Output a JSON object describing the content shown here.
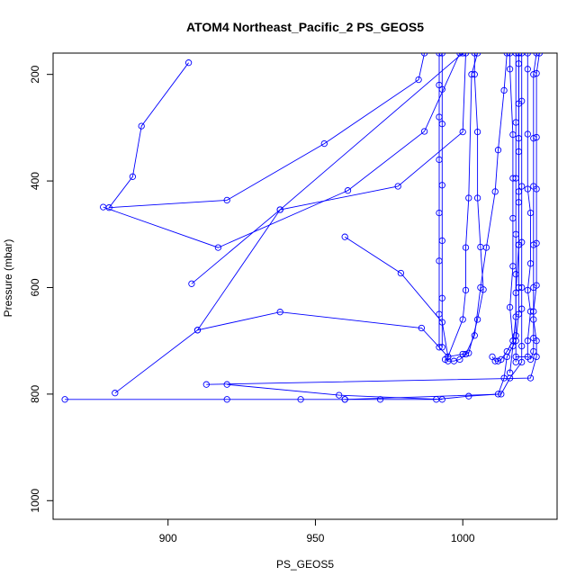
{
  "chart_data": {
    "type": "line",
    "title": "ATOM4 Northeast_Pacific_2 PS_GEOS5",
    "xlabel": "PS_GEOS5",
    "ylabel": "Pressure (mbar)",
    "xlim": [
      861,
      1032
    ],
    "ylim": [
      160,
      1035
    ],
    "y_reversed": true,
    "x_ticks": [
      900,
      950,
      1000
    ],
    "y_ticks": [
      200,
      400,
      600,
      800,
      1000
    ],
    "grid": false,
    "color": "#0000ff",
    "series": [
      {
        "values": [
          [
            907,
            178
          ],
          [
            891,
            297
          ],
          [
            888,
            392
          ],
          [
            880,
            450
          ],
          [
            920,
            436
          ],
          [
            953,
            330
          ],
          [
            985,
            210
          ],
          [
            987,
            160
          ]
        ]
      },
      {
        "values": [
          [
            878,
            449
          ],
          [
            917,
            525
          ],
          [
            961,
            418
          ],
          [
            987,
            307
          ],
          [
            999,
            160
          ]
        ]
      },
      {
        "values": [
          [
            908,
            593
          ],
          [
            938,
            454
          ],
          [
            978,
            410
          ],
          [
            1000,
            308
          ],
          [
            1001,
            160
          ]
        ]
      },
      {
        "values": [
          [
            910,
            680
          ],
          [
            938,
            454
          ],
          [
            1000,
            160
          ]
        ]
      },
      {
        "values": [
          [
            882,
            798
          ],
          [
            910,
            680
          ],
          [
            938,
            646
          ],
          [
            986,
            676
          ],
          [
            995,
            730
          ],
          [
            1000,
            660
          ],
          [
            1001,
            605
          ],
          [
            1001,
            525
          ],
          [
            1002,
            432
          ],
          [
            1003,
            200
          ],
          [
            1005,
            160
          ]
        ]
      },
      {
        "values": [
          [
            960,
            505
          ],
          [
            979,
            573
          ],
          [
            993,
            665
          ],
          [
            995,
            730
          ],
          [
            1000,
            725
          ],
          [
            1002,
            723
          ],
          [
            1005,
            660
          ],
          [
            1007,
            604
          ],
          [
            1006,
            524
          ],
          [
            1005,
            432
          ],
          [
            1005,
            308
          ],
          [
            1004,
            200
          ],
          [
            1004,
            160
          ]
        ]
      },
      {
        "values": [
          [
            865,
            810
          ],
          [
            920,
            810
          ],
          [
            945,
            810
          ],
          [
            960,
            810
          ],
          [
            972,
            810
          ],
          [
            991,
            810
          ],
          [
            1002,
            804
          ],
          [
            1012,
            800
          ],
          [
            1014,
            770
          ],
          [
            1015,
            730
          ],
          [
            1018,
            700
          ],
          [
            1019,
            650
          ],
          [
            1019,
            600
          ],
          [
            1019,
            520
          ],
          [
            1019,
            420
          ],
          [
            1019,
            320
          ],
          [
            1019,
            180
          ],
          [
            1019,
            160
          ]
        ]
      },
      {
        "values": [
          [
            960,
            810
          ],
          [
            1013,
            800
          ],
          [
            1016,
            770
          ],
          [
            1020,
            740
          ],
          [
            1020,
            710
          ],
          [
            1020,
            640
          ],
          [
            1020,
            600
          ],
          [
            1020,
            515
          ],
          [
            1020,
            410
          ],
          [
            1020,
            250
          ],
          [
            1020,
            160
          ]
        ]
      },
      {
        "values": [
          [
            913,
            782
          ],
          [
            1023,
            770
          ],
          [
            1025,
            730
          ],
          [
            1025,
            700
          ],
          [
            1024,
            660
          ],
          [
            1024,
            600
          ],
          [
            1024,
            520
          ],
          [
            1024,
            410
          ],
          [
            1024,
            320
          ],
          [
            1024,
            200
          ],
          [
            1025,
            160
          ]
        ]
      },
      {
        "values": [
          [
            920,
            782
          ],
          [
            958,
            802
          ],
          [
            993,
            810
          ]
        ]
      },
      {
        "values": [
          [
            992,
            712
          ],
          [
            992,
            650
          ],
          [
            992,
            550
          ],
          [
            992,
            460
          ],
          [
            992,
            360
          ],
          [
            992,
            280
          ],
          [
            992,
            220
          ],
          [
            992,
            160
          ]
        ]
      },
      {
        "values": [
          [
            993,
            712
          ],
          [
            993,
            620
          ],
          [
            993,
            512
          ],
          [
            993,
            408
          ],
          [
            993,
            293
          ],
          [
            993,
            228
          ],
          [
            993,
            160
          ]
        ]
      },
      {
        "values": [
          [
            994,
            735
          ],
          [
            995,
            738
          ],
          [
            997,
            738
          ],
          [
            999,
            735
          ],
          [
            1001,
            725
          ],
          [
            1004,
            690
          ],
          [
            1006,
            600
          ],
          [
            1008,
            525
          ],
          [
            1011,
            420
          ],
          [
            1012,
            342
          ],
          [
            1014,
            230
          ],
          [
            1015,
            160
          ]
        ]
      },
      {
        "values": [
          [
            1010,
            730
          ],
          [
            1011,
            738
          ],
          [
            1012,
            738
          ],
          [
            1013,
            735
          ],
          [
            1015,
            720
          ],
          [
            1017,
            700
          ],
          [
            1016,
            637
          ],
          [
            1017,
            560
          ],
          [
            1017,
            470
          ],
          [
            1017,
            395
          ],
          [
            1017,
            313
          ],
          [
            1016,
            190
          ],
          [
            1016,
            160
          ]
        ]
      },
      {
        "values": [
          [
            1018,
            730
          ],
          [
            1022,
            730
          ],
          [
            1022,
            700
          ],
          [
            1023,
            645
          ],
          [
            1022,
            605
          ],
          [
            1023,
            555
          ],
          [
            1023,
            460
          ],
          [
            1022,
            415
          ],
          [
            1022,
            312
          ],
          [
            1022,
            190
          ],
          [
            1022,
            160
          ]
        ]
      },
      {
        "values": [
          [
            1023,
            735
          ],
          [
            1024,
            720
          ],
          [
            1024,
            695
          ],
          [
            1024,
            645
          ],
          [
            1025,
            596
          ],
          [
            1025,
            517
          ],
          [
            1025,
            415
          ],
          [
            1025,
            318
          ],
          [
            1025,
            198
          ],
          [
            1026,
            160
          ]
        ]
      },
      {
        "values": [
          [
            1018,
            740
          ],
          [
            1018,
            690
          ],
          [
            1018,
            610
          ],
          [
            1019,
            520
          ],
          [
            1019,
            440
          ],
          [
            1019,
            345
          ],
          [
            1019,
            255
          ],
          [
            1019,
            160
          ]
        ]
      },
      {
        "values": [
          [
            1016,
            760
          ],
          [
            1017,
            710
          ],
          [
            1018,
            655
          ],
          [
            1018,
            575
          ],
          [
            1018,
            500
          ],
          [
            1018,
            395
          ],
          [
            1018,
            290
          ],
          [
            1018,
            160
          ]
        ]
      }
    ]
  }
}
